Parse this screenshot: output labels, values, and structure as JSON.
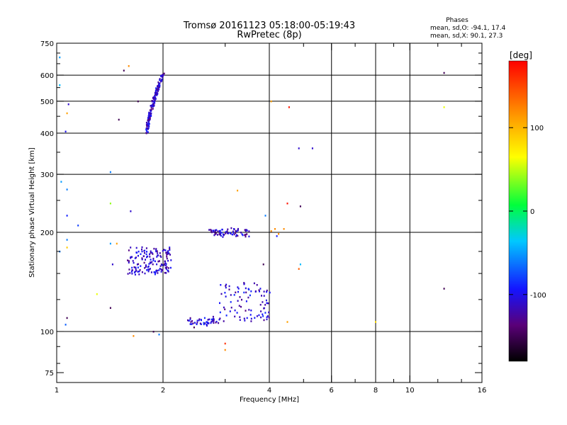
{
  "chart_data": {
    "type": "scatter",
    "title": "Tromsø 20161123 05:18:00-05:19:43",
    "subtitle": "RwPretec (8p)",
    "xlabel": "Frequency [MHz]",
    "ylabel": "Stationary phase Virtual Height [km]",
    "xscale": "log",
    "yscale": "log",
    "xlim": [
      1,
      16
    ],
    "ylim": [
      70,
      750
    ],
    "x_ticks": [
      1,
      2,
      4,
      6,
      8,
      10,
      16
    ],
    "x_tick_labels": [
      "1",
      "2",
      "4",
      "6",
      "8",
      "10",
      "16"
    ],
    "y_ticks": [
      75,
      100,
      200,
      300,
      400,
      500,
      600,
      750
    ],
    "y_tick_labels": [
      "75",
      "100",
      "200",
      "300",
      "400",
      "500",
      "600",
      "750"
    ],
    "x_grid": [
      2,
      4,
      6,
      8,
      10
    ],
    "y_grid": [
      100,
      200,
      300,
      400,
      500,
      600
    ],
    "grid": true,
    "legend_block": {
      "title": "Phases",
      "line1": "mean, sd,O: -94.1, 17.4",
      "line2": "mean, sd,X:  90.1, 27.3"
    },
    "colorbar": {
      "label": "[deg]",
      "min": -180,
      "max": 180,
      "ticks": [
        -100,
        0,
        100
      ],
      "tick_labels": [
        "-100",
        "0",
        "100"
      ]
    },
    "clusters": [
      {
        "x0": 1.8,
        "x1": 2.0,
        "h0": 400,
        "h1": 605,
        "n": 170,
        "phase": -112
      },
      {
        "x0": 1.6,
        "x1": 2.1,
        "h0": 150,
        "h1": 180,
        "n": 160,
        "phase": -110
      },
      {
        "x0": 2.7,
        "x1": 3.5,
        "h0": 195,
        "h1": 205,
        "n": 70,
        "phase": -112
      },
      {
        "x0": 2.35,
        "x1": 2.9,
        "h0": 105,
        "h1": 110,
        "n": 50,
        "phase": -108
      },
      {
        "x0": 2.9,
        "x1": 4.0,
        "h0": 108,
        "h1": 140,
        "n": 90,
        "phase": -110
      }
    ],
    "points": [
      {
        "x": 1.02,
        "y": 680,
        "p": -50
      },
      {
        "x": 1.02,
        "y": 560,
        "p": -40
      },
      {
        "x": 1.08,
        "y": 490,
        "p": -110
      },
      {
        "x": 1.07,
        "y": 460,
        "p": 110
      },
      {
        "x": 1.06,
        "y": 405,
        "p": -100
      },
      {
        "x": 1.03,
        "y": 285,
        "p": -50
      },
      {
        "x": 1.07,
        "y": 270,
        "p": -60
      },
      {
        "x": 1.07,
        "y": 225,
        "p": -90
      },
      {
        "x": 1.15,
        "y": 210,
        "p": -80
      },
      {
        "x": 1.07,
        "y": 190,
        "p": -60
      },
      {
        "x": 1.07,
        "y": 180,
        "p": 90
      },
      {
        "x": 1.02,
        "y": 175,
        "p": -60
      },
      {
        "x": 1.07,
        "y": 110,
        "p": -150
      },
      {
        "x": 1.06,
        "y": 105,
        "p": -70
      },
      {
        "x": 1.3,
        "y": 130,
        "p": 60
      },
      {
        "x": 1.42,
        "y": 118,
        "p": -150
      },
      {
        "x": 1.42,
        "y": 305,
        "p": -60
      },
      {
        "x": 1.42,
        "y": 245,
        "p": 40
      },
      {
        "x": 1.42,
        "y": 185,
        "p": -50
      },
      {
        "x": 1.48,
        "y": 185,
        "p": 110
      },
      {
        "x": 1.44,
        "y": 160,
        "p": -110
      },
      {
        "x": 1.62,
        "y": 232,
        "p": -110
      },
      {
        "x": 1.5,
        "y": 440,
        "p": -150
      },
      {
        "x": 1.55,
        "y": 620,
        "p": -150
      },
      {
        "x": 1.6,
        "y": 640,
        "p": 120
      },
      {
        "x": 1.7,
        "y": 500,
        "p": -150
      },
      {
        "x": 1.88,
        "y": 100,
        "p": -150
      },
      {
        "x": 1.95,
        "y": 98,
        "p": -60
      },
      {
        "x": 1.65,
        "y": 97,
        "p": 120
      },
      {
        "x": 2.45,
        "y": 103,
        "p": -150
      },
      {
        "x": 3.0,
        "y": 92,
        "p": 160
      },
      {
        "x": 3.0,
        "y": 88,
        "p": 120
      },
      {
        "x": 3.25,
        "y": 268,
        "p": 110
      },
      {
        "x": 4.05,
        "y": 500,
        "p": 110
      },
      {
        "x": 4.55,
        "y": 480,
        "p": 170
      },
      {
        "x": 4.85,
        "y": 360,
        "p": -110
      },
      {
        "x": 5.3,
        "y": 360,
        "p": -110
      },
      {
        "x": 4.5,
        "y": 245,
        "p": 170
      },
      {
        "x": 4.9,
        "y": 240,
        "p": -150
      },
      {
        "x": 3.9,
        "y": 225,
        "p": -60
      },
      {
        "x": 4.05,
        "y": 202,
        "p": 120
      },
      {
        "x": 4.15,
        "y": 205,
        "p": 120
      },
      {
        "x": 4.25,
        "y": 198,
        "p": 120
      },
      {
        "x": 4.4,
        "y": 205,
        "p": 120
      },
      {
        "x": 4.2,
        "y": 195,
        "p": -90
      },
      {
        "x": 3.85,
        "y": 160,
        "p": -150
      },
      {
        "x": 4.85,
        "y": 155,
        "p": 140
      },
      {
        "x": 4.9,
        "y": 160,
        "p": -40
      },
      {
        "x": 4.5,
        "y": 107,
        "p": 110
      },
      {
        "x": 8.0,
        "y": 107,
        "p": 80
      },
      {
        "x": 12.5,
        "y": 610,
        "p": -150
      },
      {
        "x": 12.5,
        "y": 480,
        "p": 60
      },
      {
        "x": 12.5,
        "y": 135,
        "p": -150
      }
    ]
  }
}
